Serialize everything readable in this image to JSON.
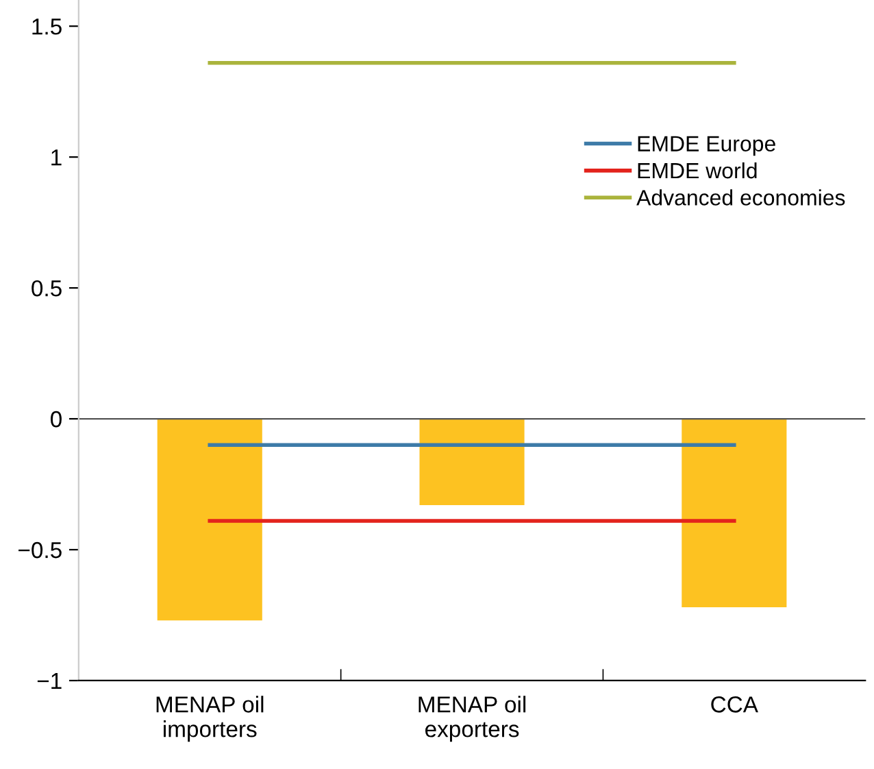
{
  "chart_data": {
    "type": "bar",
    "categories": [
      "MENAP oil\nimporters",
      "MENAP oil\nexporters",
      "CCA"
    ],
    "series": [
      {
        "color": "#fdc221",
        "values": [
          -0.77,
          -0.33,
          -0.72
        ]
      },
      {
        "type": "line",
        "name": "EMDE Europe",
        "color": "#3d7ba8",
        "values": [
          -0.1,
          -0.1,
          -0.1
        ]
      },
      {
        "type": "line",
        "name": "EMDE world",
        "color": "#e3231c",
        "values": [
          -0.39,
          -0.39,
          -0.39
        ]
      },
      {
        "type": "line",
        "name": "Advanced economies",
        "color": "#aab43c",
        "values": [
          1.36,
          1.36,
          1.36
        ]
      }
    ],
    "ylim": [
      -1,
      1.6
    ],
    "yticks": [
      {
        "value": -1,
        "label": "−1"
      },
      {
        "value": -0.5,
        "label": "−0.5"
      },
      0,
      0.5,
      1,
      1.5
    ],
    "ref_lines": [
      {
        "axis": "y",
        "value": 0,
        "color": "#555555"
      }
    ],
    "grid": false,
    "legend": "top right",
    "marker": "none",
    "line_style": "solid"
  }
}
